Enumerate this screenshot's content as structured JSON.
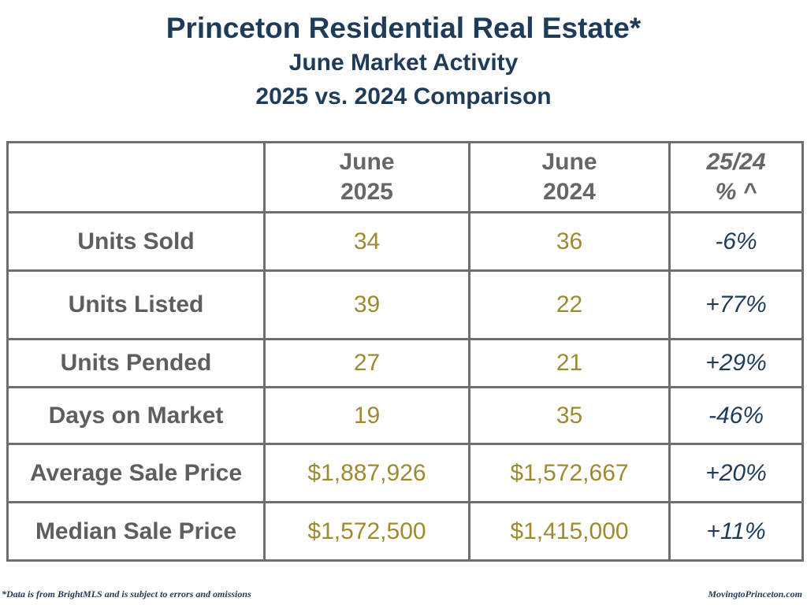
{
  "header": {
    "title": "Princeton Residential Real Estate*",
    "subtitle": "June Market Activity",
    "comparison": "2025 vs. 2024 Comparison"
  },
  "table": {
    "columns": [
      {
        "line1": "",
        "line2": ""
      },
      {
        "line1": "June",
        "line2": "2025"
      },
      {
        "line1": "June",
        "line2": "2024"
      },
      {
        "line1": "25/24",
        "line2": "% ^"
      }
    ],
    "rows": [
      {
        "label": "Units Sold",
        "v2025": "34",
        "v2024": "36",
        "pct": "-6%"
      },
      {
        "label": "Units Listed",
        "v2025": "39",
        "v2024": "22",
        "pct": "+77%"
      },
      {
        "label": "Units Pended",
        "v2025": "27",
        "v2024": "21",
        "pct": "+29%"
      },
      {
        "label": "Days on Market",
        "v2025": "19",
        "v2024": "35",
        "pct": "-46%"
      },
      {
        "label": "Average Sale Price",
        "v2025": "$1,887,926",
        "v2024": "$1,572,667",
        "pct": "+20%"
      },
      {
        "label": "Median Sale Price",
        "v2025": "$1,572,500",
        "v2024": "$1,415,000",
        "pct": "+11%"
      }
    ]
  },
  "footer": {
    "disclaimer": "*Data is from BrightMLS and is subject to errors and omissions",
    "site": "MovingtoPrinceton.com"
  },
  "colors": {
    "title": "#1f3b5a",
    "label": "#5e5e5e",
    "value": "#a08a2f",
    "percent": "#1f3b5a",
    "border": "#6e6e6e"
  }
}
